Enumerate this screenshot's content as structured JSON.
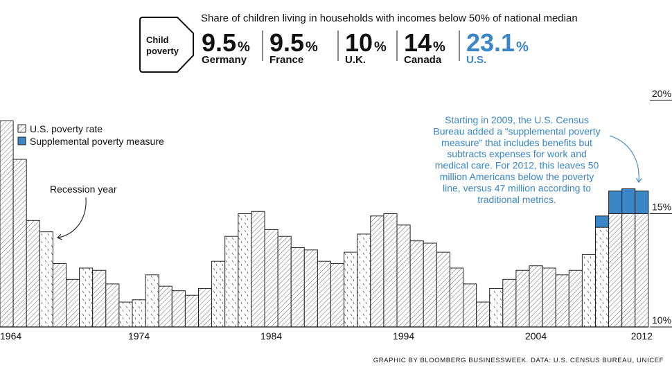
{
  "header": {
    "badge_line1": "Child",
    "badge_line2": "poverty",
    "subtitle": "Share of children living in households with incomes below 50% of national median"
  },
  "countries": [
    {
      "value": "9.5",
      "unit": "%",
      "name": "Germany",
      "color": "#111111"
    },
    {
      "value": "9.5",
      "unit": "%",
      "name": "France",
      "color": "#111111"
    },
    {
      "value": "10",
      "unit": "%",
      "name": "U.K.",
      "color": "#111111"
    },
    {
      "value": "14",
      "unit": "%",
      "name": "Canada",
      "color": "#111111"
    },
    {
      "value": "23.1",
      "unit": "%",
      "name": "U.S.",
      "color": "#3a86c6"
    }
  ],
  "chart_data": {
    "type": "bar",
    "title": "Child poverty",
    "subtitle": "Share of children living in households with incomes below 50% of national median",
    "ylim": [
      10,
      20
    ],
    "y_ticks": [
      {
        "value": 20,
        "label": "20%"
      },
      {
        "value": 15,
        "label": "15%"
      },
      {
        "value": 10,
        "label": "10%"
      }
    ],
    "x_tick_labels": [
      {
        "year": 1964,
        "label": "1964"
      },
      {
        "year": 1974,
        "label": "1974"
      },
      {
        "year": 1984,
        "label": "1984"
      },
      {
        "year": 1994,
        "label": "1994"
      },
      {
        "year": 2004,
        "label": "2004"
      },
      {
        "year": 2012,
        "label": "2012"
      }
    ],
    "legend": [
      "U.S. poverty rate",
      "Supplemental poverty measure"
    ],
    "legend_position": "top-left",
    "years": [
      1964,
      1965,
      1966,
      1967,
      1968,
      1969,
      1970,
      1971,
      1972,
      1973,
      1974,
      1975,
      1976,
      1977,
      1978,
      1979,
      1980,
      1981,
      1982,
      1983,
      1984,
      1985,
      1986,
      1987,
      1988,
      1989,
      1990,
      1991,
      1992,
      1993,
      1994,
      1995,
      1996,
      1997,
      1998,
      1999,
      2000,
      2001,
      2002,
      2003,
      2004,
      2005,
      2006,
      2007,
      2008,
      2009,
      2010,
      2011,
      2012
    ],
    "series": [
      {
        "name": "U.S. poverty rate",
        "values": [
          19.1,
          17.4,
          14.7,
          14.2,
          12.8,
          12.1,
          12.6,
          12.5,
          11.9,
          11.1,
          11.2,
          12.3,
          11.8,
          11.6,
          11.4,
          11.7,
          12.9,
          14.0,
          15.0,
          15.1,
          14.3,
          14.0,
          13.5,
          13.4,
          12.9,
          12.8,
          13.3,
          14.1,
          14.9,
          15.0,
          14.5,
          13.8,
          13.7,
          13.3,
          12.6,
          11.9,
          11.1,
          11.7,
          12.1,
          12.5,
          12.7,
          12.6,
          12.3,
          12.5,
          13.2,
          14.4,
          15.0,
          15.0,
          15.0
        ],
        "pattern": "hatched"
      },
      {
        "name": "Supplemental poverty measure",
        "start_year": 2009,
        "values": [
          14.9,
          16.0,
          16.1,
          16.0
        ],
        "color": "#3a86c6"
      }
    ],
    "recession_years": [
      1967,
      1970,
      1973,
      1974,
      1975,
      1980,
      1981,
      1982,
      1990,
      1991,
      2001,
      2008,
      2009
    ],
    "annotations": {
      "recession": "Recession year",
      "supplemental_note": [
        "Starting in 2009, the U.S. Census",
        "Bureau added a “supplemental poverty",
        "measure” that includes benefits but",
        "subtracts expenses for work and",
        "medical care. For 2012, this leaves 50",
        "million Americans below the poverty",
        "line, versus 47 million according to",
        "traditional metrics."
      ]
    }
  },
  "credit": "GRAPHIC BY BLOOMBERG BUSINESSWEEK. DATA: U.S. CENSUS BUREAU, UNICEF"
}
